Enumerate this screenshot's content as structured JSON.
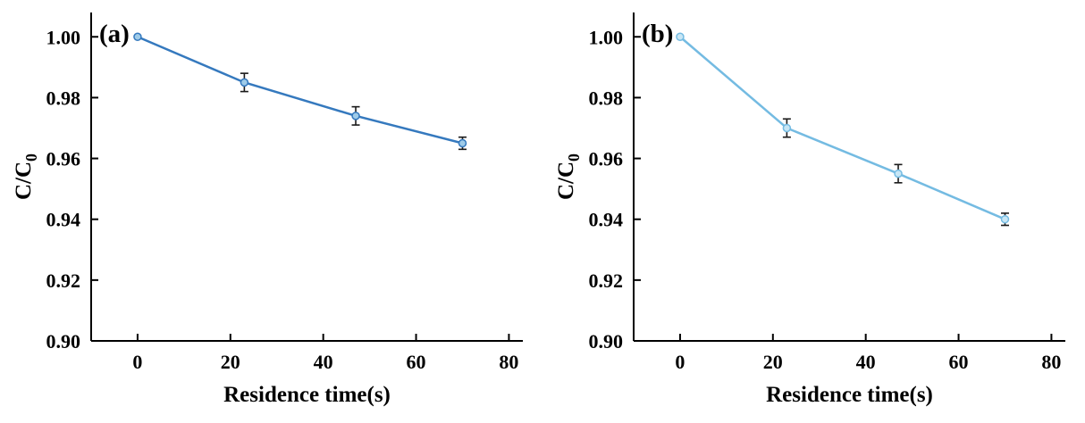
{
  "figure": {
    "background": "#ffffff",
    "axis_color": "#000000",
    "error_bar_color": "#1a1a1a"
  },
  "chart_data": [
    {
      "type": "line",
      "panel_label": "(a)",
      "xlabel": "Residence time(s)",
      "ylabel": "C/C",
      "ylabel_sub": "0",
      "x": [
        0,
        23,
        47,
        70
      ],
      "y": [
        1.0,
        0.985,
        0.974,
        0.965
      ],
      "yerr": [
        0,
        0.003,
        0.003,
        0.002
      ],
      "xlim": [
        -10,
        83
      ],
      "ylim": [
        0.9,
        1.008
      ],
      "xticks": [
        0,
        20,
        40,
        60,
        80
      ],
      "xtick_labels": [
        "0",
        "20",
        "40",
        "60",
        "80"
      ],
      "yticks": [
        0.9,
        0.92,
        0.94,
        0.96,
        0.98,
        1.0
      ],
      "ytick_labels": [
        "0.90",
        "0.92",
        "0.94",
        "0.96",
        "0.98",
        "1.00"
      ],
      "line_color": "#3579BE",
      "marker_fill": "#9FCBE8",
      "grid": false,
      "legend": null
    },
    {
      "type": "line",
      "panel_label": "(b)",
      "xlabel": "Residence time(s)",
      "ylabel": "C/C",
      "ylabel_sub": "0",
      "x": [
        0,
        23,
        47,
        70
      ],
      "y": [
        1.0,
        0.97,
        0.955,
        0.94
      ],
      "yerr": [
        0,
        0.003,
        0.003,
        0.002
      ],
      "xlim": [
        -10,
        83
      ],
      "ylim": [
        0.9,
        1.008
      ],
      "xticks": [
        0,
        20,
        40,
        60,
        80
      ],
      "xtick_labels": [
        "0",
        "20",
        "40",
        "60",
        "80"
      ],
      "yticks": [
        0.9,
        0.92,
        0.94,
        0.96,
        0.98,
        1.0
      ],
      "ytick_labels": [
        "0.90",
        "0.92",
        "0.94",
        "0.96",
        "0.98",
        "1.00"
      ],
      "line_color": "#74BBE2",
      "marker_fill": "#C8E6F5",
      "grid": false,
      "legend": null
    }
  ]
}
